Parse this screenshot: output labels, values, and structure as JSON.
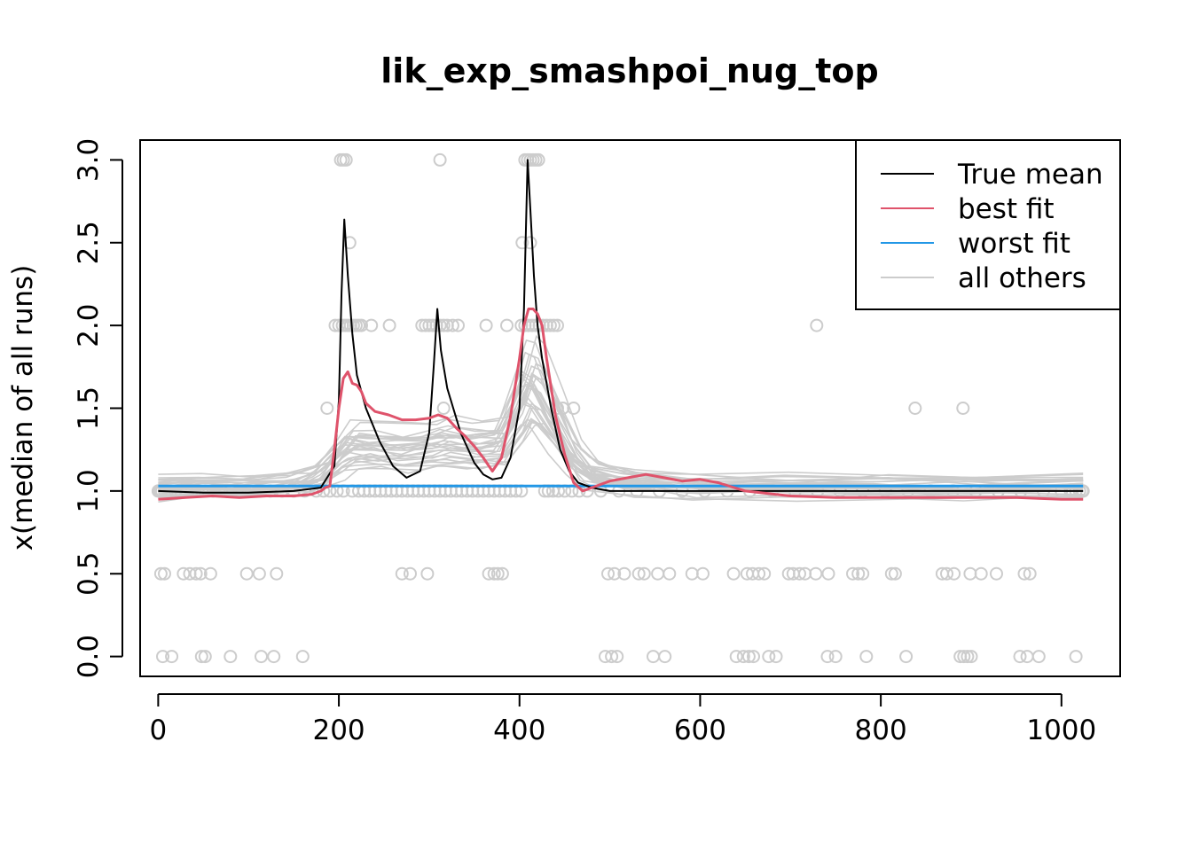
{
  "chart_data": {
    "type": "line",
    "title": "lik_exp_smashpoi_nug_top",
    "xlabel": "",
    "ylabel": "x(median of all runs)",
    "xlim": [
      -20,
      1065
    ],
    "ylim": [
      -0.12,
      3.12
    ],
    "xticks": [
      0,
      200,
      400,
      600,
      800,
      1000
    ],
    "xtick_labels": [
      "0",
      "200",
      "400",
      "600",
      "800",
      "1000"
    ],
    "yticks": [
      0,
      0.5,
      1.0,
      1.5,
      2.0,
      2.5,
      3.0
    ],
    "ytick_labels": [
      "0.0",
      "0.5",
      "1.0",
      "1.5",
      "2.0",
      "2.5",
      "3.0"
    ],
    "grid": false,
    "legend_position": "top-right",
    "colors": {
      "true_mean": "#000000",
      "best_fit": "#DF536B",
      "worst_fit": "#2297E6",
      "others": "#CCCCCC",
      "points": "#CCCCCC"
    },
    "legend": [
      {
        "label": "True mean",
        "color": "#000000"
      },
      {
        "label": "best fit",
        "color": "#DF536B"
      },
      {
        "label": "worst fit",
        "color": "#2297E6"
      },
      {
        "label": "all others",
        "color": "#CCCCCC"
      }
    ],
    "series": [
      {
        "name": "True mean",
        "x": [
          0,
          50,
          100,
          150,
          180,
          195,
          200,
          203,
          206,
          210,
          215,
          220,
          230,
          245,
          260,
          275,
          290,
          300,
          305,
          309,
          313,
          320,
          335,
          350,
          360,
          370,
          380,
          390,
          400,
          405,
          409,
          412,
          416,
          420,
          425,
          435,
          445,
          455,
          465,
          480,
          500,
          550,
          600,
          700,
          800,
          900,
          1024
        ],
        "y": [
          1.0,
          0.99,
          0.99,
          1.0,
          1.02,
          1.15,
          1.55,
          2.2,
          2.64,
          2.3,
          1.95,
          1.7,
          1.5,
          1.3,
          1.15,
          1.08,
          1.12,
          1.35,
          1.75,
          2.1,
          1.85,
          1.62,
          1.35,
          1.17,
          1.1,
          1.07,
          1.08,
          1.2,
          1.5,
          2.1,
          3.0,
          2.7,
          2.3,
          2.0,
          1.8,
          1.5,
          1.25,
          1.12,
          1.05,
          1.02,
          1.0,
          1.0,
          1.0,
          1.0,
          1.0,
          1.0,
          1.0
        ]
      },
      {
        "name": "best fit",
        "x": [
          0,
          30,
          60,
          90,
          120,
          150,
          170,
          180,
          185,
          190,
          195,
          200,
          205,
          210,
          215,
          220,
          225,
          230,
          240,
          255,
          270,
          285,
          300,
          310,
          320,
          330,
          340,
          350,
          360,
          370,
          380,
          390,
          400,
          405,
          410,
          415,
          420,
          425,
          430,
          440,
          450,
          460,
          470,
          480,
          500,
          520,
          540,
          560,
          580,
          600,
          620,
          650,
          700,
          750,
          800,
          850,
          900,
          950,
          1000,
          1024
        ],
        "y": [
          0.95,
          0.96,
          0.97,
          0.96,
          0.97,
          0.97,
          0.98,
          1.0,
          1.02,
          1.03,
          1.25,
          1.5,
          1.68,
          1.72,
          1.65,
          1.64,
          1.6,
          1.53,
          1.48,
          1.46,
          1.43,
          1.43,
          1.44,
          1.46,
          1.44,
          1.38,
          1.33,
          1.27,
          1.2,
          1.12,
          1.2,
          1.45,
          1.8,
          2.0,
          2.1,
          2.1,
          2.07,
          2.0,
          1.8,
          1.45,
          1.22,
          1.05,
          1.0,
          1.02,
          1.06,
          1.08,
          1.1,
          1.08,
          1.06,
          1.07,
          1.05,
          1.0,
          0.97,
          0.96,
          0.96,
          0.96,
          0.96,
          0.96,
          0.95,
          0.95
        ]
      },
      {
        "name": "worst fit",
        "x": [
          0,
          1024
        ],
        "y": [
          1.03,
          1.03
        ]
      }
    ],
    "other_fits": {
      "name": "all others",
      "count": 28,
      "x": [
        0,
        50,
        100,
        150,
        180,
        200,
        215,
        240,
        270,
        300,
        320,
        350,
        380,
        400,
        410,
        420,
        440,
        460,
        480,
        520,
        600,
        700,
        800,
        900,
        1024
      ],
      "y_median": [
        1.02,
        1.03,
        1.03,
        1.05,
        1.1,
        1.22,
        1.3,
        1.3,
        1.28,
        1.3,
        1.32,
        1.3,
        1.32,
        1.55,
        1.7,
        1.68,
        1.45,
        1.22,
        1.12,
        1.06,
        1.03,
        1.03,
        1.03,
        1.03,
        1.03
      ]
    },
    "points": [
      {
        "y": 0,
        "x": [
          5,
          15,
          48,
          52,
          80,
          114,
          128,
          160,
          495,
          502,
          508,
          548,
          561,
          640,
          648,
          654,
          659,
          676,
          684,
          741,
          750,
          784,
          828,
          888,
          892,
          896,
          900,
          954,
          962,
          975,
          1016
        ]
      },
      {
        "y": 0.5,
        "x": [
          3,
          7,
          28,
          35,
          42,
          47,
          58,
          98,
          112,
          131,
          270,
          279,
          298,
          366,
          372,
          376,
          381,
          498,
          505,
          516,
          532,
          538,
          553,
          566,
          591,
          603,
          637,
          652,
          658,
          665,
          671,
          698,
          703,
          710,
          716,
          728,
          742,
          769,
          775,
          780,
          812,
          816,
          868,
          873,
          881,
          899,
          911,
          928,
          959,
          965
        ]
      },
      {
        "y": 1.0,
        "x": [
          0,
          1,
          2,
          4,
          7,
          10,
          14,
          19,
          25,
          31,
          37,
          44,
          52,
          61,
          70,
          80,
          90,
          100,
          112,
          124,
          137,
          150,
          162,
          175,
          183,
          190,
          198,
          205,
          215,
          222,
          228,
          234,
          240,
          246,
          252,
          258,
          264,
          270,
          276,
          282,
          288,
          294,
          300,
          306,
          312,
          318,
          324,
          330,
          336,
          342,
          348,
          354,
          360,
          366,
          372,
          378,
          384,
          390,
          396,
          402,
          428,
          432,
          437,
          443,
          450,
          458,
          466,
          475,
          490,
          510,
          530,
          555,
          580,
          605,
          630,
          655,
          680,
          705,
          730,
          755,
          780,
          805,
          830,
          855,
          880,
          905,
          930,
          955,
          980,
          1000,
          1010,
          1016,
          1020,
          1023,
          1024
        ]
      },
      {
        "y": 1.5,
        "x": [
          187,
          316,
          442,
          448,
          460,
          838,
          891
        ]
      },
      {
        "y": 2.0,
        "x": [
          196,
          200,
          204,
          207,
          210,
          213,
          216,
          219,
          222,
          225,
          236,
          256,
          292,
          296,
          300,
          304,
          308,
          312,
          316,
          320,
          326,
          332,
          363,
          386,
          402,
          406,
          410,
          414,
          418,
          422,
          426,
          430,
          434,
          438,
          442,
          729
        ]
      },
      {
        "y": 2.5,
        "x": [
          403,
          412,
          212
        ]
      },
      {
        "y": 3.0,
        "x": [
          202,
          205,
          208,
          312,
          406,
          409,
          412,
          415,
          418,
          421
        ]
      }
    ]
  }
}
